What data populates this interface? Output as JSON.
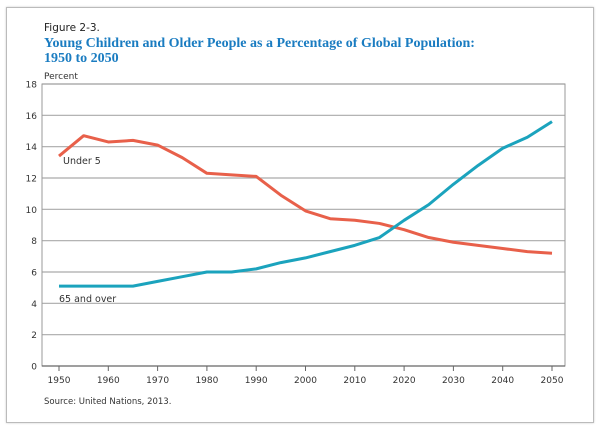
{
  "figure_label": "Figure 2-3.",
  "chart_data": {
    "type": "line",
    "title_line1": "Young Children and Older People as a Percentage of Global Population:",
    "title_line2": "1950 to 2050",
    "ylabel": "Percent",
    "xlabel": "",
    "source": "Source: United Nations, 2013.",
    "x": [
      1950,
      1955,
      1960,
      1965,
      1970,
      1975,
      1980,
      1985,
      1990,
      1995,
      2000,
      2005,
      2010,
      2015,
      2020,
      2025,
      2030,
      2035,
      2040,
      2045,
      2050
    ],
    "xlim": [
      1950,
      2050
    ],
    "ylim": [
      0,
      18
    ],
    "x_ticks": [
      "1950",
      "1960",
      "1970",
      "1980",
      "1990",
      "2000",
      "2010",
      "2020",
      "2030",
      "2040",
      "2050"
    ],
    "y_ticks": [
      "0",
      "2",
      "4",
      "6",
      "8",
      "10",
      "12",
      "14",
      "16",
      "18"
    ],
    "grid": "horizontal",
    "series": [
      {
        "name": "Under 5",
        "color": "#e8604a",
        "values": [
          13.4,
          14.7,
          14.3,
          14.4,
          14.1,
          13.3,
          12.3,
          12.2,
          12.1,
          10.9,
          9.9,
          9.4,
          9.3,
          9.1,
          8.7,
          8.2,
          7.9,
          7.7,
          7.5,
          7.3,
          7.2
        ]
      },
      {
        "name": "65 and over",
        "color": "#1ba3bd",
        "values": [
          5.1,
          5.1,
          5.1,
          5.1,
          5.4,
          5.7,
          6.0,
          6.0,
          6.2,
          6.6,
          6.9,
          7.3,
          7.7,
          8.2,
          9.3,
          10.3,
          11.6,
          12.8,
          13.9,
          14.6,
          15.6
        ]
      }
    ]
  }
}
